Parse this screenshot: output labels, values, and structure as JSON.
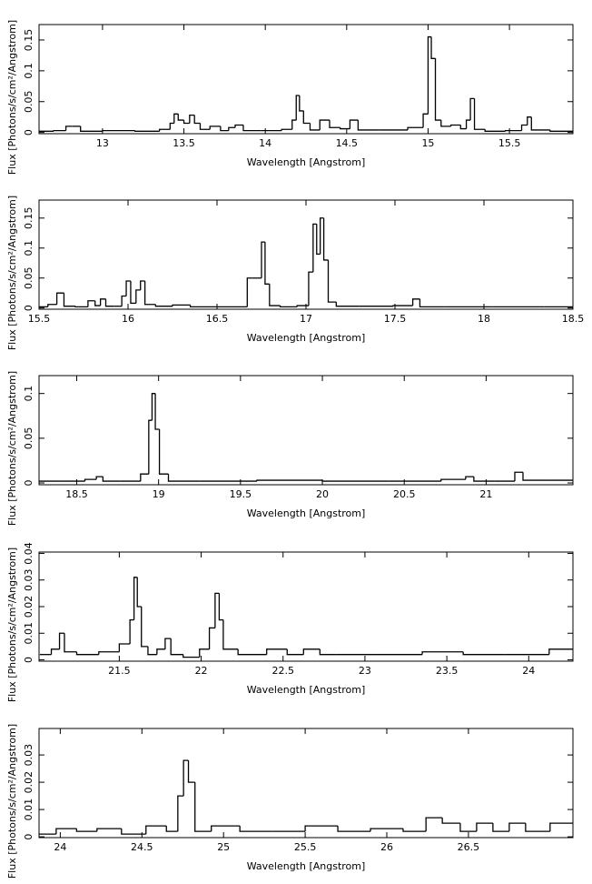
{
  "chart_data": [
    {
      "type": "line",
      "drawstyle": "steps-mid",
      "color": "#000000",
      "x_label": "Wavelength [Angstrom]",
      "y_label": "Flux [Photons/s/cm²/Angstrom]",
      "xlim": [
        12.61,
        15.89
      ],
      "ylim": [
        -0.002,
        0.175
      ],
      "xticks": [
        13,
        13.5,
        14,
        14.5,
        15,
        15.5
      ],
      "yticks": [
        0,
        0.05,
        0.1,
        0.15
      ],
      "x": [
        12.65,
        12.75,
        12.8,
        12.83,
        12.9,
        13.1,
        13.3,
        13.4,
        13.43,
        13.45,
        13.48,
        13.52,
        13.55,
        13.58,
        13.62,
        13.7,
        13.75,
        13.8,
        13.83,
        13.9,
        14.05,
        14.15,
        14.18,
        14.2,
        14.22,
        14.25,
        14.3,
        14.37,
        14.42,
        14.5,
        14.54,
        14.6,
        14.8,
        14.95,
        14.99,
        15.01,
        15.03,
        15.06,
        15.1,
        15.18,
        15.22,
        15.25,
        15.27,
        15.3,
        15.4,
        15.55,
        15.6,
        15.62,
        15.65,
        15.85
      ],
      "values": [
        0.002,
        0.003,
        0.01,
        0.01,
        0.002,
        0.003,
        0.002,
        0.005,
        0.015,
        0.03,
        0.02,
        0.015,
        0.028,
        0.015,
        0.005,
        0.01,
        0.003,
        0.008,
        0.012,
        0.003,
        0.003,
        0.005,
        0.02,
        0.06,
        0.035,
        0.015,
        0.004,
        0.02,
        0.008,
        0.006,
        0.02,
        0.004,
        0.004,
        0.008,
        0.03,
        0.155,
        0.12,
        0.02,
        0.01,
        0.012,
        0.006,
        0.02,
        0.055,
        0.005,
        0.002,
        0.003,
        0.012,
        0.025,
        0.004,
        0.002
      ]
    },
    {
      "type": "line",
      "drawstyle": "steps-mid",
      "color": "#000000",
      "x_label": "Wavelength [Angstrom]",
      "y_label": "Flux [Photons/s/cm²/Angstrom]",
      "xlim": [
        15.5,
        18.5
      ],
      "ylim": [
        -0.002,
        0.18
      ],
      "xticks": [
        15.5,
        16,
        16.5,
        17,
        17.5,
        18,
        18.5
      ],
      "yticks": [
        0,
        0.05,
        0.1,
        0.15
      ],
      "x": [
        15.52,
        15.58,
        15.62,
        15.66,
        15.75,
        15.8,
        15.83,
        15.86,
        15.89,
        15.95,
        15.98,
        16.0,
        16.03,
        16.06,
        16.08,
        16.11,
        16.2,
        16.3,
        16.4,
        16.6,
        16.74,
        16.76,
        16.78,
        16.81,
        16.9,
        17.0,
        17.03,
        17.05,
        17.07,
        17.09,
        17.11,
        17.14,
        17.2,
        17.4,
        17.58,
        17.62,
        17.66,
        17.9,
        18.2,
        18.48
      ],
      "values": [
        0.002,
        0.006,
        0.025,
        0.003,
        0.002,
        0.012,
        0.004,
        0.015,
        0.003,
        0.003,
        0.02,
        0.045,
        0.008,
        0.03,
        0.045,
        0.006,
        0.003,
        0.005,
        0.002,
        0.002,
        0.05,
        0.11,
        0.04,
        0.004,
        0.002,
        0.004,
        0.06,
        0.14,
        0.09,
        0.15,
        0.08,
        0.01,
        0.003,
        0.003,
        0.004,
        0.015,
        0.002,
        0.002,
        0.002,
        0.002
      ]
    },
    {
      "type": "line",
      "drawstyle": "steps-mid",
      "color": "#000000",
      "x_label": "Wavelength [Angstrom]",
      "y_label": "Flux [Photons/s/cm²/Angstrom]",
      "xlim": [
        18.27,
        21.53
      ],
      "ylim": [
        -0.002,
        0.12
      ],
      "xticks": [
        18.5,
        19,
        19.5,
        20,
        20.5,
        21
      ],
      "yticks": [
        0,
        0.05,
        0.1
      ],
      "x": [
        18.3,
        18.5,
        18.6,
        18.64,
        18.68,
        18.85,
        18.93,
        18.95,
        18.97,
        18.99,
        19.02,
        19.1,
        19.4,
        19.8,
        20.2,
        20.6,
        20.85,
        20.9,
        20.95,
        21.15,
        21.2,
        21.25,
        21.5
      ],
      "values": [
        0.002,
        0.002,
        0.004,
        0.007,
        0.002,
        0.002,
        0.01,
        0.07,
        0.1,
        0.06,
        0.01,
        0.002,
        0.002,
        0.003,
        0.002,
        0.002,
        0.004,
        0.007,
        0.002,
        0.002,
        0.012,
        0.003,
        0.003
      ]
    },
    {
      "type": "line",
      "drawstyle": "steps-mid",
      "color": "#000000",
      "x_label": "Wavelength [Angstrom]",
      "y_label": "Flux [Photons/s/cm²/Angstrom]",
      "xlim": [
        21.01,
        24.27
      ],
      "ylim": [
        -0.0005,
        0.0405
      ],
      "xticks": [
        21.5,
        22,
        22.5,
        23,
        23.5,
        24
      ],
      "yticks": [
        0,
        0.01,
        0.02,
        0.03,
        0.04
      ],
      "x": [
        21.05,
        21.12,
        21.15,
        21.18,
        21.3,
        21.45,
        21.55,
        21.58,
        21.6,
        21.62,
        21.65,
        21.7,
        21.76,
        21.8,
        21.83,
        21.95,
        22.03,
        22.07,
        22.1,
        22.12,
        22.15,
        22.3,
        22.5,
        22.55,
        22.7,
        22.75,
        22.9,
        23.2,
        23.5,
        23.7,
        24.0,
        24.25
      ],
      "values": [
        0.002,
        0.004,
        0.01,
        0.003,
        0.002,
        0.003,
        0.006,
        0.015,
        0.031,
        0.02,
        0.005,
        0.002,
        0.004,
        0.008,
        0.002,
        0.001,
        0.004,
        0.012,
        0.025,
        0.015,
        0.004,
        0.002,
        0.004,
        0.002,
        0.004,
        0.002,
        0.002,
        0.002,
        0.003,
        0.002,
        0.002,
        0.004
      ]
    },
    {
      "type": "line",
      "drawstyle": "steps-mid",
      "color": "#000000",
      "x_label": "Wavelength [Angstrom]",
      "y_label": "Flux [Photons/s/cm²/Angstrom]",
      "xlim": [
        23.87,
        27.14
      ],
      "ylim": [
        -0.0003,
        0.0397
      ],
      "xticks": [
        24,
        24.5,
        25,
        25.5,
        26,
        26.5
      ],
      "yticks": [
        0,
        0.01,
        0.02,
        0.03
      ],
      "x": [
        23.9,
        24.05,
        24.15,
        24.3,
        24.45,
        24.6,
        24.7,
        24.74,
        24.77,
        24.8,
        24.85,
        25.0,
        25.2,
        25.4,
        25.6,
        25.8,
        26.0,
        26.2,
        26.28,
        26.4,
        26.5,
        26.6,
        26.7,
        26.8,
        26.9,
        27.1
      ],
      "values": [
        0.001,
        0.003,
        0.002,
        0.003,
        0.001,
        0.004,
        0.002,
        0.015,
        0.028,
        0.02,
        0.002,
        0.004,
        0.002,
        0.002,
        0.004,
        0.002,
        0.003,
        0.002,
        0.007,
        0.005,
        0.002,
        0.005,
        0.002,
        0.005,
        0.002,
        0.005
      ]
    }
  ]
}
